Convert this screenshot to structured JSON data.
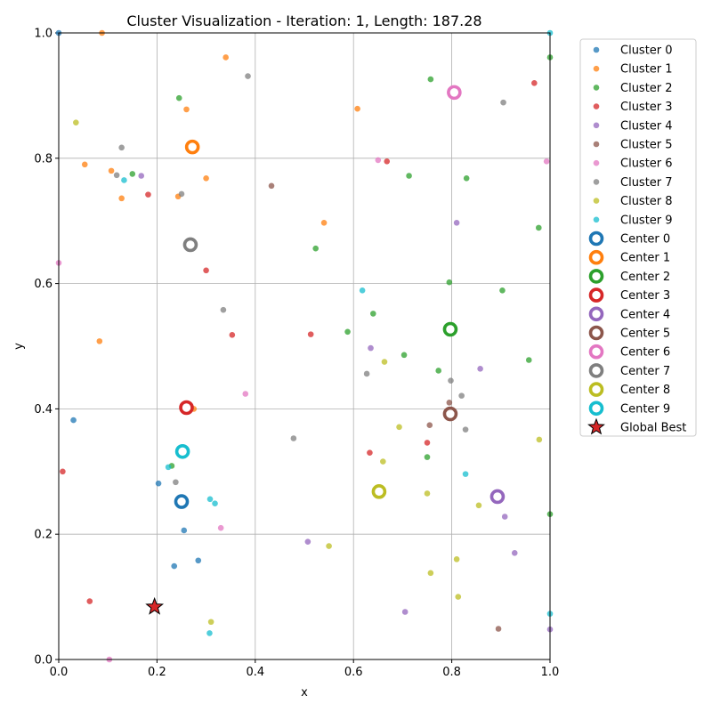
{
  "chart_data": {
    "type": "scatter",
    "title": "Cluster Visualization - Iteration: 1, Length: 187.28",
    "xlabel": "x",
    "ylabel": "y",
    "xlim": [
      0,
      1
    ],
    "ylim": [
      0,
      1
    ],
    "x_ticks": [
      "0.0",
      "0.2",
      "0.4",
      "0.6",
      "0.8",
      "1.0"
    ],
    "y_ticks": [
      "0.0",
      "0.2",
      "0.4",
      "0.6",
      "0.8",
      "1.0"
    ],
    "grid": true,
    "legend_position": "outside right, top",
    "series": [
      {
        "name": "Cluster 0",
        "color": "#1f77b4",
        "points": [
          [
            0.03,
            0.382
          ],
          [
            0.203,
            0.281
          ],
          [
            0.255,
            0.206
          ],
          [
            0.235,
            0.149
          ],
          [
            0.284,
            0.158
          ],
          [
            0.0,
            1.0
          ]
        ]
      },
      {
        "name": "Cluster 1",
        "color": "#ff7f0e",
        "points": [
          [
            0.088,
            1.0
          ],
          [
            0.34,
            0.961
          ],
          [
            0.26,
            0.878
          ],
          [
            0.053,
            0.79
          ],
          [
            0.107,
            0.78
          ],
          [
            0.128,
            0.736
          ],
          [
            0.3,
            0.768
          ],
          [
            0.243,
            0.739
          ],
          [
            0.54,
            0.697
          ],
          [
            0.608,
            0.879
          ],
          [
            0.083,
            0.508
          ],
          [
            0.275,
            0.4
          ]
        ]
      },
      {
        "name": "Cluster 2",
        "color": "#2ca02c",
        "points": [
          [
            0.245,
            0.896
          ],
          [
            0.757,
            0.926
          ],
          [
            1.0,
            0.961
          ],
          [
            0.713,
            0.772
          ],
          [
            0.83,
            0.768
          ],
          [
            0.15,
            0.775
          ],
          [
            0.523,
            0.656
          ],
          [
            0.795,
            0.602
          ],
          [
            0.903,
            0.589
          ],
          [
            0.977,
            0.689
          ],
          [
            0.64,
            0.552
          ],
          [
            0.588,
            0.523
          ],
          [
            0.703,
            0.486
          ],
          [
            0.773,
            0.461
          ],
          [
            0.957,
            0.478
          ],
          [
            0.75,
            0.323
          ],
          [
            0.23,
            0.309
          ],
          [
            1.0,
            0.232
          ]
        ]
      },
      {
        "name": "Cluster 3",
        "color": "#d62728",
        "points": [
          [
            0.968,
            0.92
          ],
          [
            0.668,
            0.795
          ],
          [
            0.182,
            0.742
          ],
          [
            0.3,
            0.621
          ],
          [
            0.353,
            0.518
          ],
          [
            0.513,
            0.519
          ],
          [
            0.75,
            0.346
          ],
          [
            0.633,
            0.33
          ],
          [
            0.008,
            0.3
          ],
          [
            0.063,
            0.093
          ]
        ]
      },
      {
        "name": "Cluster 4",
        "color": "#9467bd",
        "points": [
          [
            0.168,
            0.772
          ],
          [
            0.81,
            0.697
          ],
          [
            0.635,
            0.497
          ],
          [
            0.858,
            0.464
          ],
          [
            0.908,
            0.228
          ],
          [
            0.507,
            0.188
          ],
          [
            0.928,
            0.17
          ],
          [
            0.705,
            0.076
          ],
          [
            1.0,
            0.048
          ]
        ]
      },
      {
        "name": "Cluster 5",
        "color": "#8c564b",
        "points": [
          [
            0.433,
            0.756
          ],
          [
            0.755,
            0.374
          ],
          [
            0.795,
            0.41
          ],
          [
            0.895,
            0.049
          ]
        ]
      },
      {
        "name": "Cluster 6",
        "color": "#e377c2",
        "points": [
          [
            0.65,
            0.797
          ],
          [
            0.993,
            0.795
          ],
          [
            0.0,
            0.633
          ],
          [
            0.38,
            0.424
          ],
          [
            0.33,
            0.21
          ],
          [
            0.103,
            0.0
          ]
        ]
      },
      {
        "name": "Cluster 7",
        "color": "#7f7f7f",
        "points": [
          [
            0.385,
            0.931
          ],
          [
            0.905,
            0.889
          ],
          [
            0.128,
            0.817
          ],
          [
            0.118,
            0.773
          ],
          [
            0.25,
            0.743
          ],
          [
            0.335,
            0.558
          ],
          [
            0.627,
            0.456
          ],
          [
            0.798,
            0.445
          ],
          [
            0.82,
            0.421
          ],
          [
            0.478,
            0.353
          ],
          [
            0.828,
            0.367
          ],
          [
            0.238,
            0.283
          ]
        ]
      },
      {
        "name": "Cluster 8",
        "color": "#bcbd22",
        "points": [
          [
            0.035,
            0.857
          ],
          [
            0.663,
            0.475
          ],
          [
            0.693,
            0.371
          ],
          [
            0.978,
            0.351
          ],
          [
            0.66,
            0.316
          ],
          [
            0.75,
            0.265
          ],
          [
            0.855,
            0.246
          ],
          [
            0.55,
            0.181
          ],
          [
            0.81,
            0.16
          ],
          [
            0.757,
            0.138
          ],
          [
            0.813,
            0.1
          ],
          [
            0.31,
            0.06
          ]
        ]
      },
      {
        "name": "Cluster 9",
        "color": "#17becf",
        "points": [
          [
            0.618,
            0.589
          ],
          [
            0.133,
            0.765
          ],
          [
            0.828,
            0.296
          ],
          [
            0.223,
            0.307
          ],
          [
            0.308,
            0.256
          ],
          [
            0.318,
            0.249
          ],
          [
            0.307,
            0.042
          ],
          [
            1.0,
            0.073
          ],
          [
            1.0,
            1.0
          ]
        ]
      }
    ],
    "centers": [
      {
        "name": "Center 0",
        "color": "#1f77b4",
        "x": 0.25,
        "y": 0.252
      },
      {
        "name": "Center 1",
        "color": "#ff7f0e",
        "x": 0.272,
        "y": 0.818
      },
      {
        "name": "Center 2",
        "color": "#2ca02c",
        "x": 0.797,
        "y": 0.527
      },
      {
        "name": "Center 3",
        "color": "#d62728",
        "x": 0.26,
        "y": 0.402
      },
      {
        "name": "Center 4",
        "color": "#9467bd",
        "x": 0.893,
        "y": 0.26
      },
      {
        "name": "Center 5",
        "color": "#8c564b",
        "x": 0.797,
        "y": 0.392
      },
      {
        "name": "Center 6",
        "color": "#e377c2",
        "x": 0.805,
        "y": 0.905
      },
      {
        "name": "Center 7",
        "color": "#7f7f7f",
        "x": 0.268,
        "y": 0.662
      },
      {
        "name": "Center 8",
        "color": "#bcbd22",
        "x": 0.652,
        "y": 0.268
      },
      {
        "name": "Center 9",
        "color": "#17becf",
        "x": 0.252,
        "y": 0.332
      }
    ],
    "global_best": {
      "name": "Global Best",
      "color": "#d62728",
      "x": 0.195,
      "y": 0.084
    }
  }
}
